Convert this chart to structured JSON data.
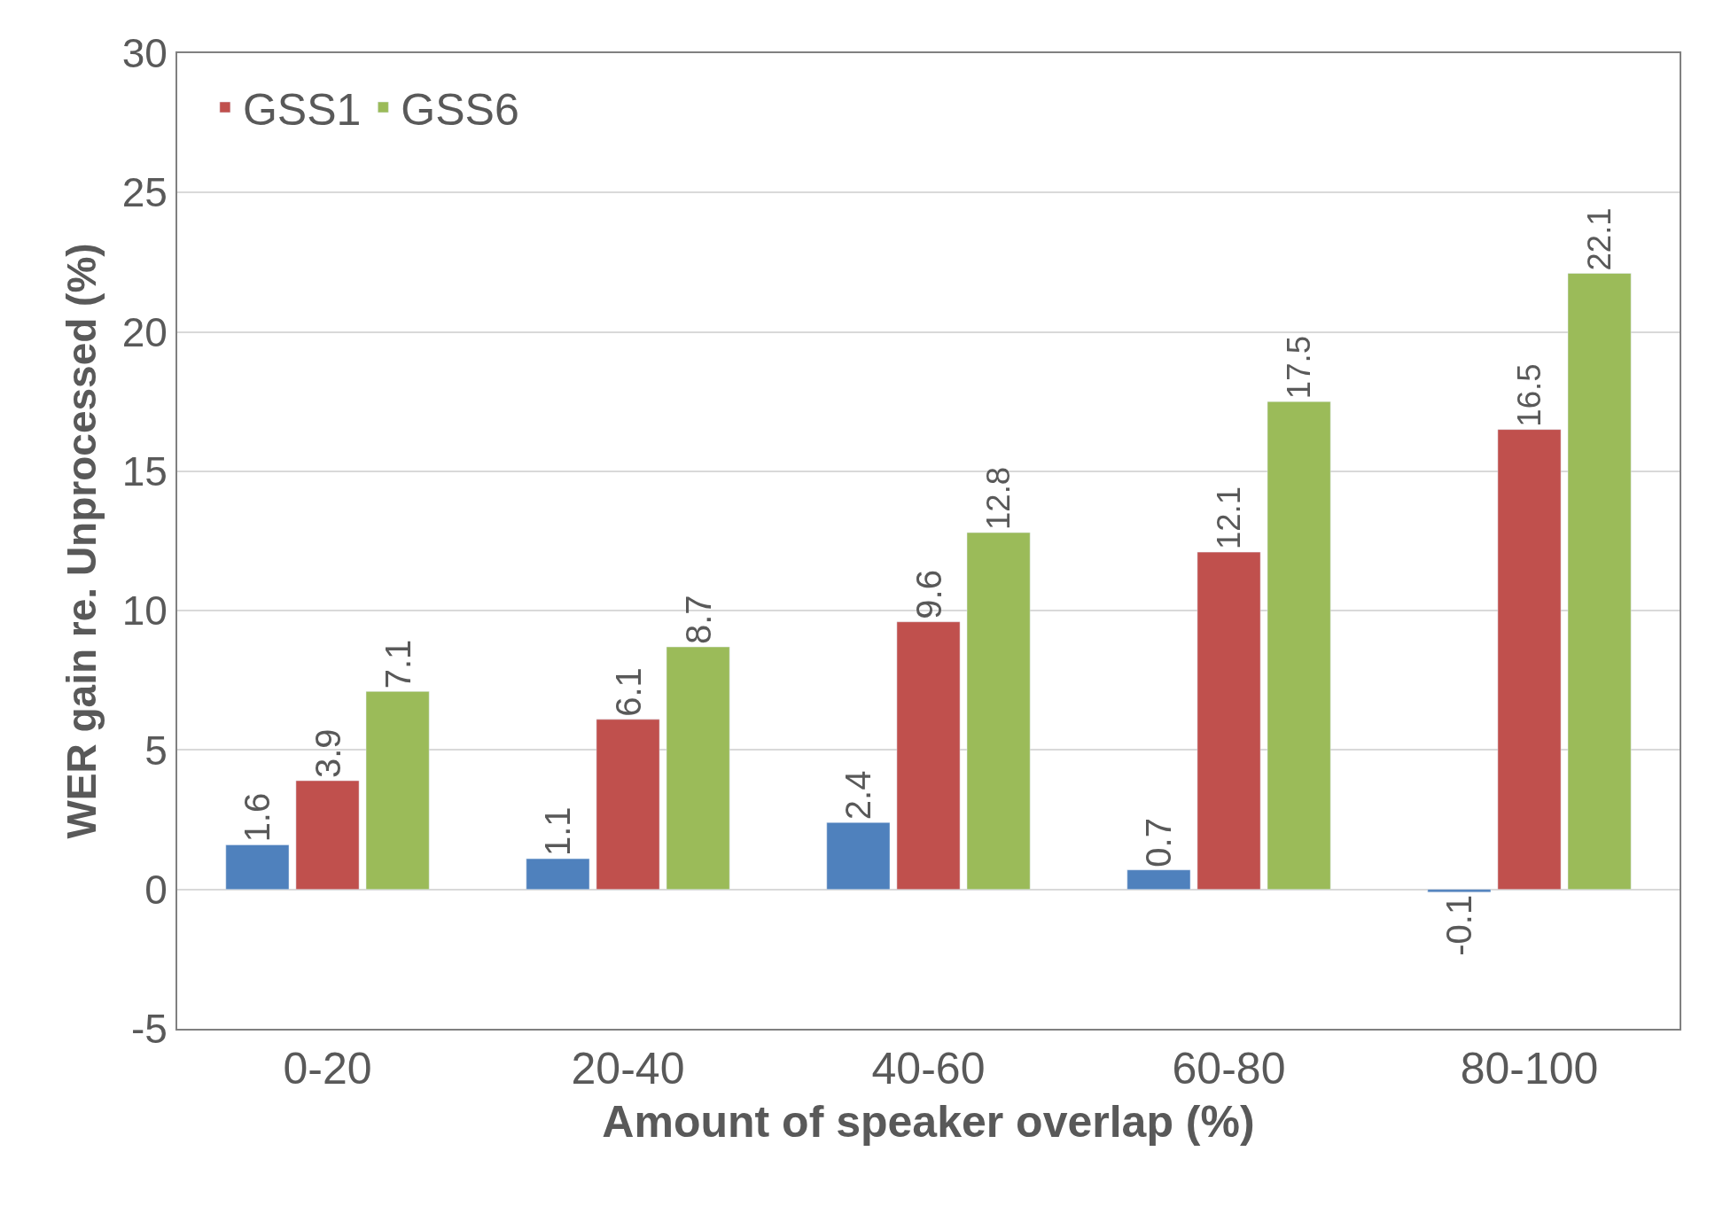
{
  "chart_data": {
    "type": "bar",
    "xlabel": "Amount of speaker overlap (%)",
    "ylabel": "WER gain re. Unprocessed (%)",
    "categories": [
      "0-20",
      "20-40",
      "40-60",
      "60-80",
      "80-100"
    ],
    "series": [
      {
        "color": "#4f81bd",
        "values": [
          1.6,
          1.1,
          2.4,
          0.7,
          -0.1
        ]
      },
      {
        "name": "GSS1",
        "color": "#c0504d",
        "values": [
          3.9,
          6.1,
          9.6,
          12.1,
          16.5
        ]
      },
      {
        "name": "GSS6",
        "color": "#9bbb59",
        "values": [
          7.1,
          8.7,
          12.8,
          17.5,
          22.1
        ]
      }
    ],
    "ylim": [
      -5,
      30
    ],
    "yticks": [
      -5,
      0,
      5,
      10,
      15,
      20,
      25,
      30
    ],
    "grid": "y",
    "legend": "top left",
    "data_labels": true
  }
}
